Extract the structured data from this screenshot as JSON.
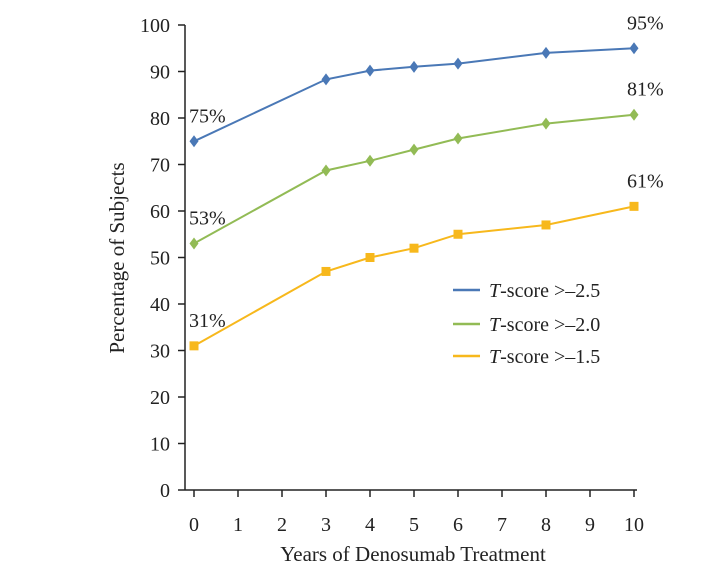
{
  "chart_data": {
    "type": "line",
    "title": "",
    "xlabel": "Years of Denosumab Treatment",
    "ylabel": "Percentage of Subjects",
    "xlim": [
      0,
      10
    ],
    "ylim": [
      0,
      100
    ],
    "xticks": [
      0,
      1,
      2,
      3,
      4,
      5,
      6,
      7,
      8,
      9,
      10
    ],
    "yticks": [
      0,
      10,
      20,
      30,
      40,
      50,
      60,
      70,
      80,
      90,
      100
    ],
    "grid": false,
    "legend_position": "right",
    "series": [
      {
        "name_italic": "T",
        "name_rest": "-score >–2.5",
        "color": "#4a78b6",
        "marker": "diamond",
        "x": [
          0,
          3,
          4,
          5,
          6,
          8,
          10
        ],
        "values": [
          75,
          88.3,
          90.2,
          91,
          91.7,
          94,
          95
        ],
        "labels": [
          {
            "x": 0,
            "text": "75%"
          },
          {
            "x": 10,
            "text": "95%"
          }
        ]
      },
      {
        "name_italic": "T",
        "name_rest": "-score >–2.0",
        "color": "#92bb55",
        "marker": "diamond",
        "x": [
          0,
          3,
          4,
          5,
          6,
          8,
          10
        ],
        "values": [
          53,
          68.7,
          70.8,
          73.2,
          75.6,
          78.8,
          80.7
        ],
        "labels": [
          {
            "x": 0,
            "text": "53%"
          },
          {
            "x": 10,
            "text": "81%"
          }
        ]
      },
      {
        "name_italic": "T",
        "name_rest": "-score >–1.5",
        "color": "#f7b81c",
        "marker": "square",
        "x": [
          0,
          3,
          4,
          5,
          6,
          8,
          10
        ],
        "values": [
          31,
          47,
          50,
          52,
          55,
          57,
          61
        ],
        "labels": [
          {
            "x": 0,
            "text": "31%"
          },
          {
            "x": 10,
            "text": "61%"
          }
        ]
      }
    ]
  }
}
